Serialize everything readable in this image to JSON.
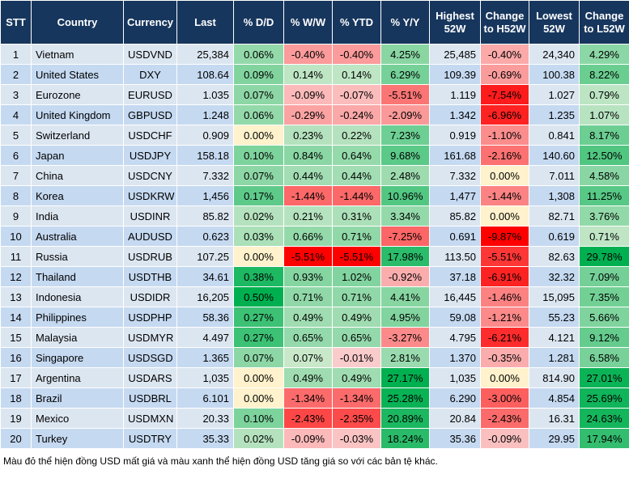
{
  "table": {
    "header": [
      "STT",
      "Country",
      "Currency",
      "Last",
      "% D/D",
      "% W/W",
      "% YTD",
      "% Y/Y",
      "Highest 52W",
      "Change to H52W",
      "Lowest 52W",
      "Change to L52W"
    ],
    "rows": [
      [
        "1",
        "Vietnam",
        "USDVND",
        "25,384",
        "0.06%",
        "-0.40%",
        "-0.40%",
        "4.25%",
        "25,485",
        "-0.40%",
        "24,340",
        "4.29%"
      ],
      [
        "2",
        "United States",
        "DXY",
        "108.64",
        "0.09%",
        "0.14%",
        "0.14%",
        "6.29%",
        "109.39",
        "-0.69%",
        "100.38",
        "8.22%"
      ],
      [
        "3",
        "Eurozone",
        "EURUSD",
        "1.035",
        "0.07%",
        "-0.09%",
        "-0.07%",
        "-5.51%",
        "1.119",
        "-7.54%",
        "1.027",
        "0.79%"
      ],
      [
        "4",
        "United Kingdom",
        "GBPUSD",
        "1.248",
        "0.06%",
        "-0.29%",
        "-0.24%",
        "-2.09%",
        "1.342",
        "-6.96%",
        "1.235",
        "1.07%"
      ],
      [
        "5",
        "Switzerland",
        "USDCHF",
        "0.909",
        "0.00%",
        "0.23%",
        "0.22%",
        "7.23%",
        "0.919",
        "-1.10%",
        "0.841",
        "8.17%"
      ],
      [
        "6",
        "Japan",
        "USDJPY",
        "158.18",
        "0.10%",
        "0.84%",
        "0.64%",
        "9.68%",
        "161.68",
        "-2.16%",
        "140.60",
        "12.50%"
      ],
      [
        "7",
        "China",
        "USDCNY",
        "7.332",
        "0.07%",
        "0.44%",
        "0.44%",
        "2.48%",
        "7.332",
        "0.00%",
        "7.011",
        "4.58%"
      ],
      [
        "8",
        "Korea",
        "USDKRW",
        "1,456",
        "0.17%",
        "-1.44%",
        "-1.44%",
        "10.96%",
        "1,477",
        "-1.44%",
        "1,308",
        "11.25%"
      ],
      [
        "9",
        "India",
        "USDINR",
        "85.82",
        "0.02%",
        "0.21%",
        "0.31%",
        "3.34%",
        "85.82",
        "0.00%",
        "82.71",
        "3.76%"
      ],
      [
        "10",
        "Australia",
        "AUDUSD",
        "0.623",
        "0.03%",
        "0.66%",
        "0.71%",
        "-7.25%",
        "0.691",
        "-9.87%",
        "0.619",
        "0.71%"
      ],
      [
        "11",
        "Russia",
        "USDRUB",
        "107.25",
        "0.00%",
        "-5.51%",
        "-5.51%",
        "17.98%",
        "113.50",
        "-5.51%",
        "82.63",
        "29.78%"
      ],
      [
        "12",
        "Thailand",
        "USDTHB",
        "34.61",
        "0.38%",
        "0.93%",
        "1.02%",
        "-0.92%",
        "37.18",
        "-6.91%",
        "32.32",
        "7.09%"
      ],
      [
        "13",
        "Indonesia",
        "USDIDR",
        "16,205",
        "0.50%",
        "0.71%",
        "0.71%",
        "4.41%",
        "16,445",
        "-1.46%",
        "15,095",
        "7.35%"
      ],
      [
        "14",
        "Philippines",
        "USDPHP",
        "58.36",
        "0.27%",
        "0.49%",
        "0.49%",
        "4.95%",
        "59.08",
        "-1.21%",
        "55.23",
        "5.66%"
      ],
      [
        "15",
        "Malaysia",
        "USDMYR",
        "4.497",
        "0.27%",
        "0.65%",
        "0.65%",
        "-3.27%",
        "4.795",
        "-6.21%",
        "4.121",
        "9.12%"
      ],
      [
        "16",
        "Singapore",
        "USDSGD",
        "1.365",
        "0.07%",
        "0.07%",
        "-0.01%",
        "2.81%",
        "1.370",
        "-0.35%",
        "1.281",
        "6.58%"
      ],
      [
        "17",
        "Argentina",
        "USDARS",
        "1,035",
        "0.00%",
        "0.49%",
        "0.49%",
        "27.17%",
        "1,035",
        "0.00%",
        "814.90",
        "27.01%"
      ],
      [
        "18",
        "Brazil",
        "USDBRL",
        "6.101",
        "0.00%",
        "-1.34%",
        "-1.34%",
        "25.28%",
        "6.290",
        "-3.00%",
        "4.854",
        "25.69%"
      ],
      [
        "19",
        "Mexico",
        "USDMXN",
        "20.33",
        "0.10%",
        "-2.43%",
        "-2.35%",
        "20.89%",
        "20.84",
        "-2.43%",
        "16.31",
        "24.63%"
      ],
      [
        "20",
        "Turkey",
        "USDTRY",
        "35.33",
        "0.02%",
        "-0.09%",
        "-0.03%",
        "18.24%",
        "35.36",
        "-0.09%",
        "29.95",
        "17.94%"
      ]
    ],
    "footnote": "Màu đỏ thể hiện đồng USD mất giá và màu xanh thể hiện đồng USD tăng giá so với các bản tệ khác."
  }
}
